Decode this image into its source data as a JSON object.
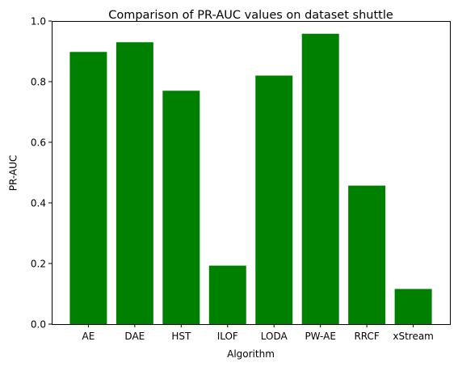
{
  "chart_data": {
    "type": "bar",
    "title": "Comparison of PR-AUC values on dataset shuttle",
    "xlabel": "Algorithm",
    "ylabel": "PR-AUC",
    "categories": [
      "AE",
      "DAE",
      "HST",
      "ILOF",
      "LODA",
      "PW-AE",
      "RRCF",
      "xStream"
    ],
    "values": [
      0.898,
      0.93,
      0.77,
      0.193,
      0.82,
      0.958,
      0.457,
      0.116
    ],
    "ylim": [
      0.0,
      1.0
    ],
    "yticks": [
      0.0,
      0.2,
      0.4,
      0.6,
      0.8,
      1.0
    ],
    "ytick_labels": [
      "0.0",
      "0.2",
      "0.4",
      "0.6",
      "0.8",
      "1.0"
    ],
    "bar_color": "#008000",
    "grid": false,
    "legend": "none"
  }
}
